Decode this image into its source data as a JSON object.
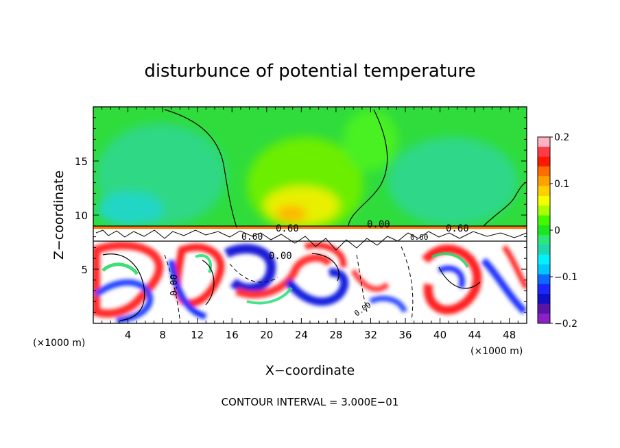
{
  "chart_data": {
    "type": "heatmap",
    "title": "disturbunce of potential temperature",
    "xlabel": "X−coordinate",
    "ylabel": "Z−coordinate",
    "x_unit_left": "(×1000 m)",
    "x_unit_right": "(×1000 m)",
    "xlim": [
      0,
      50
    ],
    "ylim": [
      0,
      20
    ],
    "x_ticks": [
      4,
      8,
      12,
      16,
      20,
      24,
      28,
      32,
      36,
      40,
      44,
      48
    ],
    "x_tick_labels": [
      "4",
      "8",
      "12",
      "16",
      "20",
      "24",
      "28",
      "32",
      "36",
      "40",
      "44",
      "48"
    ],
    "y_ticks": [
      5,
      10,
      15
    ],
    "y_tick_labels": [
      "5",
      "10",
      "15"
    ],
    "colorbar": {
      "min": -0.2,
      "max": 0.2,
      "ticks": [
        0.2,
        0.1,
        0,
        -0.1,
        -0.2
      ],
      "tick_labels": [
        "0.2",
        "0.1",
        "0",
        "−0.1",
        "−0.2"
      ],
      "colors": [
        "#ffb3c0",
        "#ff3b4a",
        "#ff1800",
        "#ff6d00",
        "#ffa100",
        "#ffd000",
        "#f5ff00",
        "#a8ff00",
        "#44f800",
        "#1ee61e",
        "#2ee678",
        "#1ed7b3",
        "#00f2ff",
        "#00c8ff",
        "#0a6aff",
        "#1a28ff",
        "#1010c8",
        "#5a14aa",
        "#8a20c8"
      ]
    },
    "contour_labels": [
      "0.60",
      "0.00",
      "0.00",
      "0.60",
      "0.00",
      "0.60",
      "0.60",
      "0.00"
    ],
    "contour_interval_text": "CONTOUR INTERVAL = 3.000E−01"
  }
}
